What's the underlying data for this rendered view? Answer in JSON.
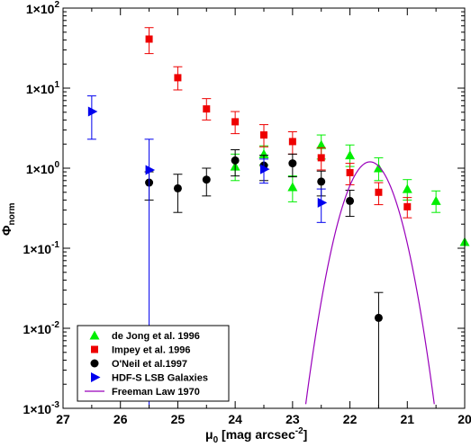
{
  "chart_data": {
    "type": "scatter",
    "xlabel": "μ0 [mag arcsec⁻²]",
    "xlabel_base": "μ",
    "xlabel_sub": "0",
    "xlabel_unit": " [mag arcsec",
    "xlabel_sup": "-2",
    "xlabel_close": "]",
    "ylabel": "Φnorm",
    "ylabel_base": "Φ",
    "ylabel_sub": "norm",
    "x_reversed": true,
    "xlim": [
      27,
      20
    ],
    "ylim": [
      0.001,
      100
    ],
    "y_scale": "log",
    "x_ticks": [
      27,
      26,
      25,
      24,
      23,
      22,
      21,
      20
    ],
    "y_ticks": [
      {
        "value": 100,
        "mant": "1×10",
        "exp": "2"
      },
      {
        "value": 10,
        "mant": "1×10",
        "exp": "1"
      },
      {
        "value": 1,
        "mant": "1×10",
        "exp": "0"
      },
      {
        "value": 0.1,
        "mant": "1×10",
        "exp": "-1"
      },
      {
        "value": 0.01,
        "mant": "1×10",
        "exp": "-2"
      },
      {
        "value": 0.001,
        "mant": "1×10",
        "exp": "-3"
      }
    ],
    "grid": false,
    "legend_position": "bottom-left",
    "series": [
      {
        "name": "de Jong et al. 1996",
        "marker": "triangle-up",
        "color": "#00ee00",
        "error_color": "#00ee00",
        "points": [
          {
            "x": 24.0,
            "y": 1.05,
            "lo": 0.7,
            "hi": 1.5
          },
          {
            "x": 23.5,
            "y": 1.5,
            "lo": 1.1,
            "hi": 1.9
          },
          {
            "x": 23.0,
            "y": 0.58,
            "lo": 0.38,
            "hi": 0.8
          },
          {
            "x": 22.5,
            "y": 1.95,
            "lo": 1.3,
            "hi": 2.6
          },
          {
            "x": 22.0,
            "y": 1.45,
            "lo": 1.05,
            "hi": 1.95
          },
          {
            "x": 21.5,
            "y": 1.0,
            "lo": 0.7,
            "hi": 1.35
          },
          {
            "x": 21.0,
            "y": 0.55,
            "lo": 0.4,
            "hi": 0.72
          },
          {
            "x": 20.5,
            "y": 0.39,
            "lo": 0.28,
            "hi": 0.52
          },
          {
            "x": 20.0,
            "y": 0.12
          }
        ]
      },
      {
        "name": "Impey et al. 1996",
        "marker": "square",
        "color": "#ee0000",
        "error_color": "#ee0000",
        "points": [
          {
            "x": 25.5,
            "y": 41,
            "lo": 27,
            "hi": 57
          },
          {
            "x": 25.0,
            "y": 13.5,
            "lo": 9.5,
            "hi": 18.5
          },
          {
            "x": 24.5,
            "y": 5.5,
            "lo": 4.0,
            "hi": 7.4
          },
          {
            "x": 24.0,
            "y": 3.8,
            "lo": 2.7,
            "hi": 5.1
          },
          {
            "x": 23.5,
            "y": 2.6,
            "lo": 1.85,
            "hi": 3.5
          },
          {
            "x": 23.0,
            "y": 2.15,
            "lo": 1.5,
            "hi": 2.85
          },
          {
            "x": 22.5,
            "y": 1.35,
            "lo": 0.95,
            "hi": 1.8
          },
          {
            "x": 22.0,
            "y": 0.88,
            "lo": 0.62,
            "hi": 1.15
          },
          {
            "x": 21.5,
            "y": 0.5,
            "lo": 0.35,
            "hi": 0.66
          },
          {
            "x": 21.0,
            "y": 0.33,
            "lo": 0.24,
            "hi": 0.43
          }
        ]
      },
      {
        "name": "O'Neil et al.1997",
        "marker": "circle",
        "color": "#000000",
        "error_color": "#000000",
        "points": [
          {
            "x": 25.5,
            "y": 0.66,
            "lo": 0.4,
            "hi": 0.9
          },
          {
            "x": 25.0,
            "y": 0.56,
            "lo": 0.28,
            "hi": 0.84
          },
          {
            "x": 24.5,
            "y": 0.72,
            "lo": 0.45,
            "hi": 1.0
          },
          {
            "x": 24.0,
            "y": 1.25,
            "lo": 0.8,
            "hi": 1.7
          },
          {
            "x": 23.5,
            "y": 1.08,
            "lo": 0.7,
            "hi": 1.45
          },
          {
            "x": 23.0,
            "y": 1.15,
            "lo": 0.78,
            "hi": 1.5
          },
          {
            "x": 22.5,
            "y": 0.68,
            "lo": 0.45,
            "hi": 0.92
          },
          {
            "x": 22.0,
            "y": 0.39,
            "lo": 0.25,
            "hi": 0.53
          },
          {
            "x": 21.5,
            "y": 0.0135,
            "lo": 0.001,
            "hi": 0.028
          }
        ]
      },
      {
        "name": "HDF-S LSB Galaxies",
        "marker": "triangle-right",
        "color": "#0000ee",
        "error_color": "#0000ee",
        "points": [
          {
            "x": 26.5,
            "y": 5.1,
            "lo": 2.3,
            "hi": 8.0
          },
          {
            "x": 25.5,
            "y": 0.95,
            "lo": 0.001,
            "hi": 2.3
          },
          {
            "x": 23.5,
            "y": 0.97,
            "lo": 0.65,
            "hi": 1.3
          },
          {
            "x": 22.5,
            "y": 0.37,
            "lo": 0.21,
            "hi": 0.55
          }
        ]
      },
      {
        "name": "Freeman Law 1970",
        "marker": "line",
        "color": "#9900bb",
        "curve": {
          "peak_x": 21.65,
          "peak_y": 1.2,
          "sigma_mag": 0.3
        }
      }
    ]
  }
}
